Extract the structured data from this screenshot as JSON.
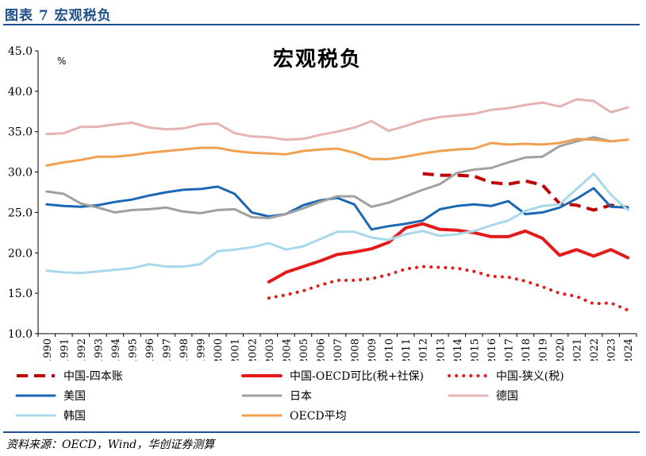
{
  "header": {
    "figure_label": "图表 7   宏观税负"
  },
  "footer": {
    "source": "资料来源：OECD，Wind，华创证券测算"
  },
  "chart_data": {
    "type": "line",
    "title": "宏观税负",
    "unit_label": "%",
    "ylim": [
      10,
      45
    ],
    "yticks": [
      "10.0",
      "15.0",
      "20.0",
      "25.0",
      "30.0",
      "35.0",
      "40.0",
      "45.0"
    ],
    "x": [
      "1990",
      "1991",
      "1992",
      "1993",
      "1994",
      "1995",
      "1996",
      "1997",
      "1998",
      "1999",
      "2000",
      "2001",
      "2002",
      "2003",
      "2004",
      "2005",
      "2006",
      "2007",
      "2008",
      "2009",
      "2010",
      "2011",
      "2012",
      "2013",
      "2014",
      "2015",
      "2016",
      "2017",
      "2018",
      "2019",
      "2020",
      "2021",
      "2022",
      "2023",
      "2024"
    ],
    "legend_position": "bottom",
    "grid": false,
    "series": [
      {
        "name": "中国-四本账",
        "color": "#c00000",
        "style": "dashed",
        "width": 4,
        "values": [
          null,
          null,
          null,
          null,
          null,
          null,
          null,
          null,
          null,
          null,
          null,
          null,
          null,
          null,
          null,
          null,
          null,
          null,
          null,
          null,
          null,
          null,
          29.8,
          29.6,
          29.6,
          29.5,
          28.7,
          28.5,
          28.9,
          28.4,
          26.1,
          25.9,
          25.3,
          25.9,
          25.6
        ]
      },
      {
        "name": "中国-OECD可比(税+社保)",
        "color": "#e41b1b",
        "style": "solid",
        "width": 4,
        "values": [
          null,
          null,
          null,
          null,
          null,
          null,
          null,
          null,
          null,
          null,
          null,
          null,
          null,
          16.4,
          17.6,
          18.3,
          19.0,
          19.8,
          20.1,
          20.5,
          21.3,
          23.1,
          23.6,
          22.9,
          22.8,
          22.5,
          22.0,
          22.0,
          22.7,
          21.8,
          19.7,
          20.4,
          19.6,
          20.4,
          19.4
        ]
      },
      {
        "name": "中国-狭义(税)",
        "color": "#e41b1b",
        "style": "dotted",
        "width": 4,
        "values": [
          null,
          null,
          null,
          null,
          null,
          null,
          null,
          null,
          null,
          null,
          null,
          null,
          null,
          14.4,
          14.8,
          15.3,
          16.0,
          16.6,
          16.6,
          16.8,
          17.3,
          18.0,
          18.3,
          18.2,
          18.1,
          17.7,
          17.1,
          17.0,
          16.5,
          15.8,
          15.0,
          14.6,
          13.7,
          13.8,
          12.9
        ]
      },
      {
        "name": "美国",
        "color": "#1a67b3",
        "style": "solid",
        "width": 3,
        "values": [
          26.0,
          25.8,
          25.7,
          25.9,
          26.3,
          26.6,
          27.1,
          27.5,
          27.8,
          27.9,
          28.2,
          27.3,
          25.0,
          24.5,
          24.8,
          25.9,
          26.5,
          26.8,
          26.0,
          22.9,
          23.3,
          23.6,
          24.0,
          25.4,
          25.8,
          26.0,
          25.8,
          26.4,
          24.8,
          25.0,
          25.6,
          26.7,
          28.0,
          25.7,
          25.6
        ]
      },
      {
        "name": "日本",
        "color": "#a0a0a0",
        "style": "solid",
        "width": 3,
        "values": [
          27.6,
          27.3,
          26.1,
          25.6,
          25.0,
          25.3,
          25.4,
          25.6,
          25.1,
          24.9,
          25.3,
          25.4,
          24.4,
          24.3,
          24.8,
          25.5,
          26.3,
          27.0,
          27.0,
          25.7,
          26.2,
          27.0,
          27.8,
          28.5,
          29.9,
          30.3,
          30.5,
          31.2,
          31.8,
          31.9,
          33.2,
          33.8,
          34.3,
          33.8,
          null
        ]
      },
      {
        "name": "德国",
        "color": "#e6b3b3",
        "style": "solid",
        "width": 3,
        "values": [
          34.7,
          34.8,
          35.6,
          35.6,
          35.9,
          36.1,
          35.5,
          35.3,
          35.4,
          35.9,
          36.0,
          34.8,
          34.4,
          34.3,
          34.0,
          34.1,
          34.6,
          35.0,
          35.5,
          36.3,
          35.1,
          35.7,
          36.4,
          36.8,
          37.0,
          37.2,
          37.7,
          37.9,
          38.3,
          38.6,
          38.1,
          39.0,
          38.8,
          37.4,
          38.0
        ]
      },
      {
        "name": "韩国",
        "color": "#a9d8ea",
        "style": "solid",
        "width": 3,
        "values": [
          17.8,
          17.6,
          17.5,
          17.7,
          17.9,
          18.1,
          18.6,
          18.3,
          18.3,
          18.6,
          20.2,
          20.4,
          20.7,
          21.2,
          20.4,
          20.8,
          21.7,
          22.6,
          22.6,
          21.9,
          21.6,
          22.3,
          22.7,
          22.1,
          22.3,
          22.7,
          23.4,
          24.0,
          25.2,
          25.8,
          26.0,
          27.9,
          29.8,
          27.2,
          25.3
        ]
      },
      {
        "name": "OECD平均",
        "color": "#f0a050",
        "style": "solid",
        "width": 3,
        "values": [
          30.8,
          31.2,
          31.5,
          31.9,
          31.9,
          32.1,
          32.4,
          32.6,
          32.8,
          33.0,
          33.0,
          32.6,
          32.4,
          32.3,
          32.2,
          32.6,
          32.8,
          32.9,
          32.4,
          31.6,
          31.6,
          31.9,
          32.3,
          32.6,
          32.8,
          32.9,
          33.6,
          33.4,
          33.5,
          33.4,
          33.6,
          34.1,
          34.0,
          33.8,
          34.0
        ]
      }
    ]
  }
}
